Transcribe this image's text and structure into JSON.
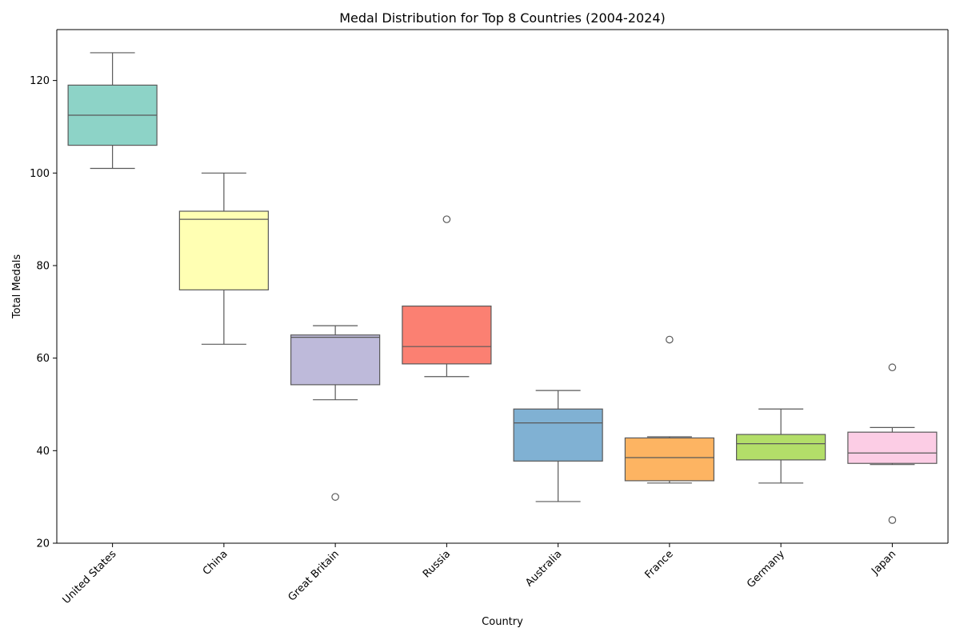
{
  "chart_data": {
    "type": "box",
    "title": "Medal Distribution for Top 8 Countries (2004-2024)",
    "xlabel": "Country",
    "ylabel": "Total Medals",
    "ylim": [
      20,
      131
    ],
    "yticks": [
      20,
      40,
      60,
      80,
      100,
      120
    ],
    "grid": false,
    "legend": "none",
    "categories": [
      "United States",
      "China",
      "Great Britain",
      "Russia",
      "Australia",
      "France",
      "Germany",
      "Japan"
    ],
    "boxes": [
      {
        "category": "United States",
        "color": "#8dd3c7",
        "whisker_low": 101,
        "q1": 106,
        "median": 112.5,
        "q3": 119,
        "whisker_high": 126,
        "outliers": []
      },
      {
        "category": "China",
        "color": "#ffffb3",
        "whisker_low": 63,
        "q1": 74.75,
        "median": 90,
        "q3": 91.75,
        "whisker_high": 100,
        "outliers": []
      },
      {
        "category": "Great Britain",
        "color": "#bebada",
        "whisker_low": 51,
        "q1": 54.25,
        "median": 64.5,
        "q3": 65,
        "whisker_high": 67,
        "outliers": [
          30
        ]
      },
      {
        "category": "Russia",
        "color": "#fb8072",
        "whisker_low": 56,
        "q1": 58.75,
        "median": 62.5,
        "q3": 71.25,
        "whisker_high": 71.25,
        "outliers": [
          90
        ]
      },
      {
        "category": "Australia",
        "color": "#80b1d3",
        "whisker_low": 29,
        "q1": 37.75,
        "median": 46,
        "q3": 49,
        "whisker_high": 53,
        "outliers": []
      },
      {
        "category": "France",
        "color": "#fdb462",
        "whisker_low": 33,
        "q1": 33.5,
        "median": 38.5,
        "q3": 42.75,
        "whisker_high": 43,
        "outliers": [
          64
        ]
      },
      {
        "category": "Germany",
        "color": "#b3de69",
        "whisker_low": 33,
        "q1": 38,
        "median": 41.5,
        "q3": 43.5,
        "whisker_high": 49,
        "outliers": []
      },
      {
        "category": "Japan",
        "color": "#fccde5",
        "whisker_low": 37,
        "q1": 37.25,
        "median": 39.5,
        "q3": 44,
        "whisker_high": 45,
        "outliers": [
          58,
          25
        ]
      }
    ]
  }
}
